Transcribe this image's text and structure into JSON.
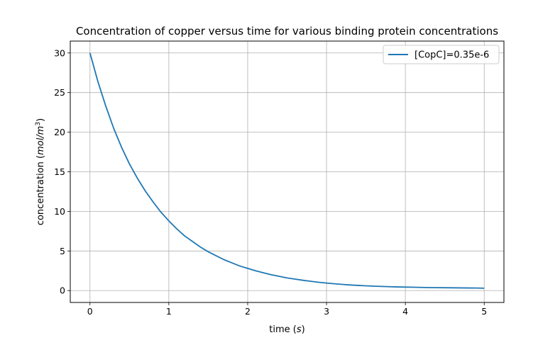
{
  "chart_data": {
    "type": "line",
    "title": "Concentration of copper versus time for various binding protein concentrations",
    "xlabel": {
      "text": "time (",
      "math": "s",
      "suffix": ")"
    },
    "ylabel": {
      "text": "concentration (",
      "math": "mol/m",
      "sup": "3",
      "suffix": ")"
    },
    "xlim": [
      -0.25,
      5.25
    ],
    "ylim": [
      -1.5,
      31.5
    ],
    "xticks": [
      0,
      1,
      2,
      3,
      4,
      5
    ],
    "yticks": [
      0,
      5,
      10,
      15,
      20,
      25,
      30
    ],
    "grid": true,
    "legend_position": "top-right",
    "series": [
      {
        "name": "[CopC]=0.35e-6",
        "color": "#1f77b4",
        "x": [
          0,
          0.1,
          0.2,
          0.3,
          0.4,
          0.5,
          0.6,
          0.7,
          0.8,
          0.9,
          1.0,
          1.1,
          1.2,
          1.3,
          1.4,
          1.5,
          1.6,
          1.7,
          1.8,
          1.9,
          2.0,
          2.1,
          2.2,
          2.3,
          2.4,
          2.5,
          2.6,
          2.7,
          2.8,
          2.9,
          3.0,
          3.1,
          3.2,
          3.3,
          3.4,
          3.5,
          3.6,
          3.7,
          3.8,
          3.9,
          4.0,
          4.1,
          4.2,
          4.3,
          4.4,
          4.5,
          4.6,
          4.7,
          4.8,
          4.9,
          5.0
        ],
        "y": [
          30.0,
          26.4,
          23.3,
          20.5,
          18.1,
          16.0,
          14.2,
          12.6,
          11.2,
          9.9,
          8.8,
          7.8,
          6.9,
          6.2,
          5.5,
          4.9,
          4.4,
          3.9,
          3.5,
          3.1,
          2.8,
          2.5,
          2.25,
          2.0,
          1.8,
          1.6,
          1.45,
          1.3,
          1.17,
          1.05,
          0.95,
          0.86,
          0.78,
          0.71,
          0.65,
          0.6,
          0.56,
          0.52,
          0.49,
          0.46,
          0.44,
          0.42,
          0.4,
          0.38,
          0.37,
          0.36,
          0.35,
          0.34,
          0.33,
          0.32,
          0.3
        ]
      }
    ]
  }
}
